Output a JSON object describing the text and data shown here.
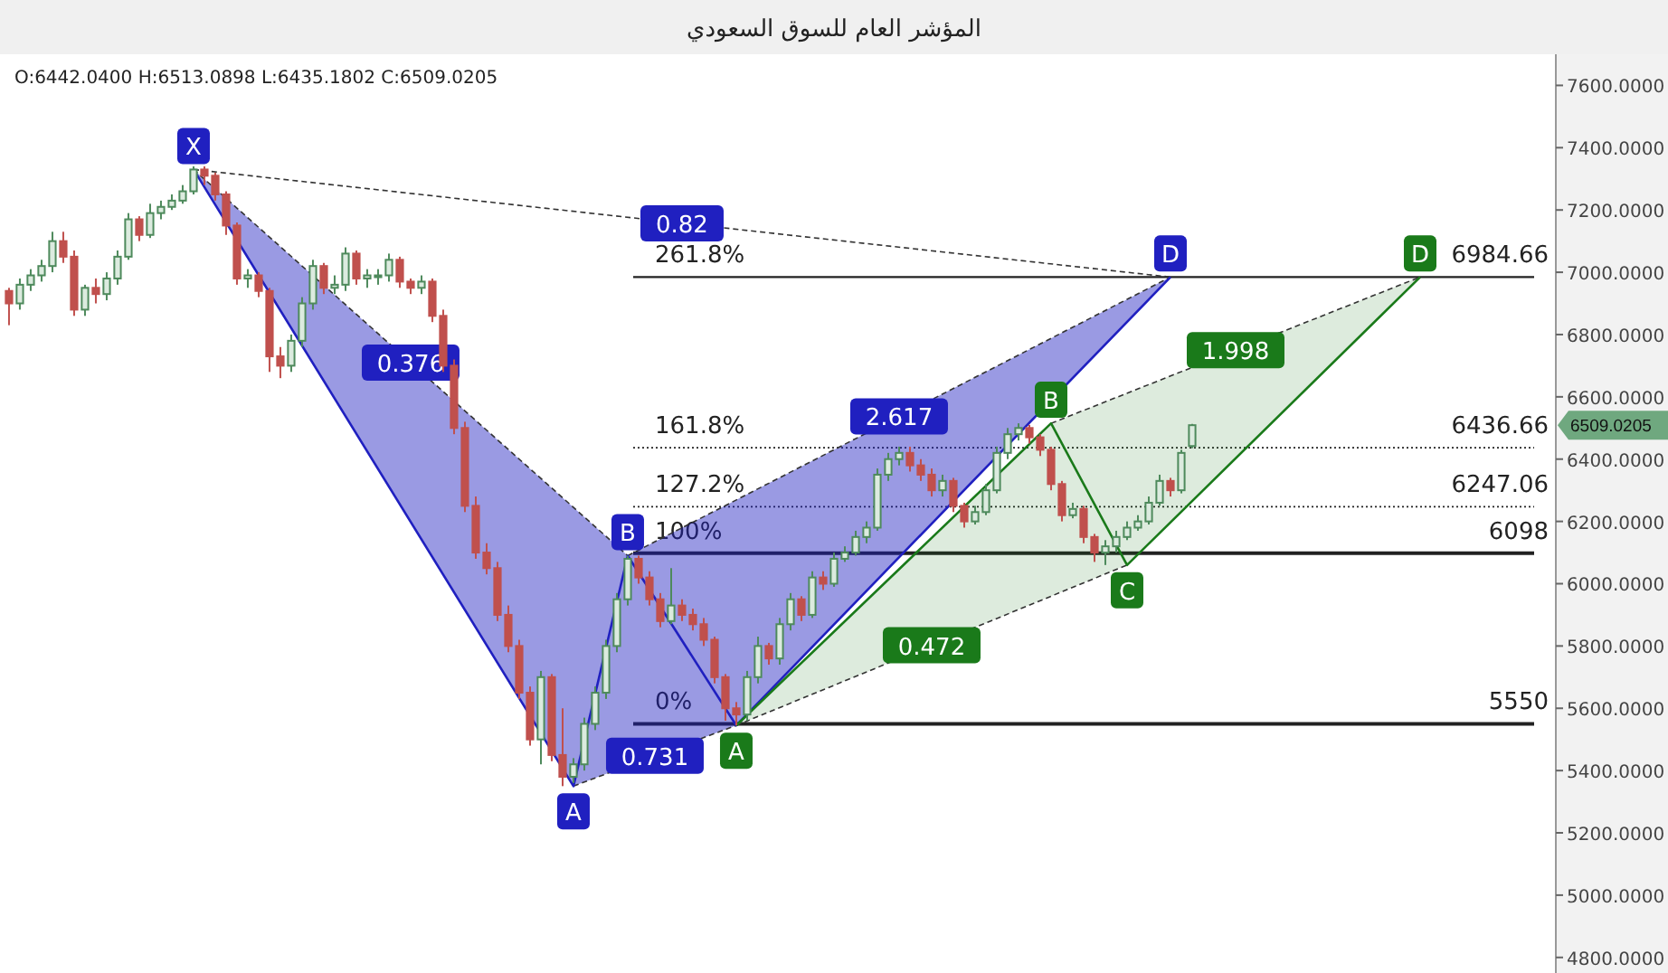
{
  "chart_data": {
    "type": "candlestick",
    "title": "المؤشر العام للسوق السعودي",
    "categories": [
      null,
      null,
      null,
      null,
      null,
      null,
      null,
      null,
      null,
      null,
      null,
      null,
      null,
      null,
      null,
      null,
      null,
      null,
      null,
      null,
      null,
      null,
      null,
      null,
      null,
      null,
      null,
      null,
      null,
      null,
      null,
      null,
      null,
      null,
      null,
      null,
      null,
      null,
      null,
      null,
      null,
      null,
      null,
      null,
      null,
      null,
      null,
      null,
      null,
      null,
      null,
      null,
      null,
      null,
      null,
      null,
      null,
      null,
      null,
      null,
      null,
      null,
      null,
      null,
      null,
      null,
      null,
      null,
      null,
      null,
      null,
      null,
      null,
      null,
      null,
      null,
      null,
      null,
      null,
      null,
      null,
      null,
      null,
      null,
      null,
      null,
      null,
      null,
      null,
      null,
      null,
      null,
      null,
      null,
      null,
      null,
      null,
      null,
      null,
      null,
      null,
      null,
      null,
      null,
      null,
      null,
      null,
      null,
      null,
      null,
      null,
      null,
      null,
      null,
      null,
      null,
      null,
      null,
      null,
      null,
      null,
      null,
      null,
      null,
      null,
      null,
      null,
      null,
      null,
      null,
      null,
      null,
      null,
      null,
      null,
      null,
      null,
      null,
      null,
      null,
      null,
      null,
      null
    ],
    "ohlc": [
      [
        6940,
        6950,
        6830,
        6900
      ],
      [
        6900,
        6980,
        6880,
        6960
      ],
      [
        6960,
        7010,
        6940,
        6990
      ],
      [
        6990,
        7040,
        6970,
        7020
      ],
      [
        7020,
        7130,
        7000,
        7100
      ],
      [
        7100,
        7130,
        7030,
        7050
      ],
      [
        7050,
        7070,
        6860,
        6880
      ],
      [
        6880,
        6960,
        6860,
        6950
      ],
      [
        6950,
        6980,
        6900,
        6930
      ],
      [
        6930,
        7000,
        6910,
        6980
      ],
      [
        6980,
        7070,
        6960,
        7050
      ],
      [
        7050,
        7190,
        7040,
        7170
      ],
      [
        7170,
        7180,
        7100,
        7120
      ],
      [
        7120,
        7220,
        7110,
        7190
      ],
      [
        7190,
        7230,
        7170,
        7210
      ],
      [
        7210,
        7250,
        7200,
        7230
      ],
      [
        7230,
        7280,
        7220,
        7260
      ],
      [
        7260,
        7340,
        7250,
        7330
      ],
      [
        7330,
        7340,
        7280,
        7310
      ],
      [
        7310,
        7320,
        7230,
        7250
      ],
      [
        7250,
        7260,
        7120,
        7150
      ],
      [
        7150,
        7160,
        6960,
        6980
      ],
      [
        6980,
        7010,
        6950,
        6990
      ],
      [
        6990,
        7000,
        6920,
        6940
      ],
      [
        6940,
        6950,
        6680,
        6730
      ],
      [
        6730,
        6760,
        6660,
        6700
      ],
      [
        6700,
        6800,
        6680,
        6780
      ],
      [
        6780,
        6920,
        6760,
        6900
      ],
      [
        6900,
        7040,
        6880,
        7020
      ],
      [
        7020,
        7030,
        6930,
        6950
      ],
      [
        6950,
        6990,
        6930,
        6960
      ],
      [
        6960,
        7080,
        6940,
        7060
      ],
      [
        7060,
        7070,
        6960,
        6980
      ],
      [
        6980,
        7010,
        6950,
        6990
      ],
      [
        6990,
        7010,
        6960,
        6990
      ],
      [
        6990,
        7060,
        6970,
        7040
      ],
      [
        7040,
        7050,
        6950,
        6970
      ],
      [
        6970,
        6980,
        6930,
        6950
      ],
      [
        6950,
        6990,
        6930,
        6970
      ],
      [
        6970,
        6980,
        6840,
        6860
      ],
      [
        6860,
        6880,
        6680,
        6700
      ],
      [
        6700,
        6720,
        6480,
        6500
      ],
      [
        6500,
        6520,
        6230,
        6250
      ],
      [
        6250,
        6280,
        6080,
        6100
      ],
      [
        6100,
        6130,
        6030,
        6050
      ],
      [
        6050,
        6070,
        5880,
        5900
      ],
      [
        5900,
        5930,
        5780,
        5800
      ],
      [
        5800,
        5820,
        5630,
        5650
      ],
      [
        5650,
        5670,
        5480,
        5500
      ],
      [
        5500,
        5720,
        5420,
        5700
      ],
      [
        5700,
        5710,
        5430,
        5450
      ],
      [
        5450,
        5600,
        5350,
        5380
      ],
      [
        5380,
        5440,
        5360,
        5420
      ],
      [
        5420,
        5570,
        5400,
        5550
      ],
      [
        5550,
        5670,
        5530,
        5650
      ],
      [
        5650,
        5820,
        5630,
        5800
      ],
      [
        5800,
        5970,
        5780,
        5950
      ],
      [
        5950,
        6090,
        5930,
        6080
      ],
      [
        6080,
        6090,
        6000,
        6020
      ],
      [
        6020,
        6040,
        5930,
        5950
      ],
      [
        5950,
        5970,
        5860,
        5880
      ],
      [
        5880,
        6050,
        5870,
        5930
      ],
      [
        5930,
        5950,
        5880,
        5900
      ],
      [
        5900,
        5920,
        5850,
        5870
      ],
      [
        5870,
        5890,
        5800,
        5820
      ],
      [
        5820,
        5830,
        5680,
        5700
      ],
      [
        5700,
        5710,
        5560,
        5600
      ],
      [
        5600,
        5620,
        5545,
        5580
      ],
      [
        5580,
        5720,
        5560,
        5700
      ],
      [
        5700,
        5830,
        5680,
        5800
      ],
      [
        5800,
        5810,
        5740,
        5760
      ],
      [
        5760,
        5890,
        5740,
        5870
      ],
      [
        5870,
        5970,
        5850,
        5950
      ],
      [
        5950,
        5960,
        5880,
        5900
      ],
      [
        5900,
        6040,
        5890,
        6020
      ],
      [
        6020,
        6040,
        5980,
        6000
      ],
      [
        6000,
        6100,
        5990,
        6080
      ],
      [
        6080,
        6120,
        6070,
        6100
      ],
      [
        6100,
        6170,
        6090,
        6150
      ],
      [
        6150,
        6200,
        6130,
        6180
      ],
      [
        6180,
        6370,
        6170,
        6350
      ],
      [
        6350,
        6420,
        6330,
        6400
      ],
      [
        6400,
        6440,
        6380,
        6420
      ],
      [
        6420,
        6440,
        6360,
        6380
      ],
      [
        6380,
        6400,
        6330,
        6350
      ],
      [
        6350,
        6370,
        6280,
        6300
      ],
      [
        6300,
        6350,
        6280,
        6330
      ],
      [
        6330,
        6340,
        6230,
        6250
      ],
      [
        6250,
        6260,
        6180,
        6200
      ],
      [
        6200,
        6250,
        6190,
        6230
      ],
      [
        6230,
        6320,
        6220,
        6300
      ],
      [
        6300,
        6440,
        6290,
        6420
      ],
      [
        6420,
        6500,
        6400,
        6480
      ],
      [
        6480,
        6515,
        6460,
        6500
      ],
      [
        6500,
        6510,
        6450,
        6470
      ],
      [
        6470,
        6480,
        6410,
        6430
      ],
      [
        6430,
        6440,
        6300,
        6320
      ],
      [
        6320,
        6330,
        6200,
        6220
      ],
      [
        6220,
        6260,
        6210,
        6240
      ],
      [
        6240,
        6250,
        6130,
        6150
      ],
      [
        6150,
        6160,
        6070,
        6100
      ],
      [
        6100,
        6140,
        6060,
        6120
      ],
      [
        6120,
        6170,
        6100,
        6150
      ],
      [
        6150,
        6200,
        6140,
        6180
      ],
      [
        6180,
        6220,
        6170,
        6200
      ],
      [
        6200,
        6280,
        6190,
        6260
      ],
      [
        6260,
        6350,
        6250,
        6330
      ],
      [
        6330,
        6340,
        6280,
        6300
      ],
      [
        6300,
        6430,
        6290,
        6420
      ],
      [
        6442.04,
        6513.0898,
        6435.1802,
        6509.0205
      ],
      null,
      null,
      null,
      null,
      null,
      null,
      null,
      null,
      null,
      null,
      null,
      null,
      null,
      null,
      null,
      null,
      null,
      null,
      null,
      null,
      null,
      null,
      null,
      null,
      null,
      null,
      null,
      null,
      null,
      null,
      null,
      null,
      null
    ],
    "series": [
      {
        "type": "line",
        "color": "#2020c0",
        "values": [
          null,
          null,
          null,
          null,
          null,
          null,
          null,
          null,
          null,
          null,
          null,
          null,
          null,
          null,
          null,
          null,
          null,
          7330,
          null,
          null,
          null,
          null,
          null,
          null,
          null,
          null,
          null,
          null,
          null,
          null,
          null,
          null,
          null,
          null,
          null,
          null,
          null,
          null,
          null,
          null,
          null,
          null,
          null,
          null,
          null,
          null,
          null,
          null,
          null,
          null,
          null,
          null,
          5350,
          null,
          null,
          null,
          null,
          6090,
          null,
          null,
          null,
          null,
          null,
          null,
          null,
          null,
          null,
          5545,
          null,
          null,
          null,
          null,
          null,
          null,
          null,
          null,
          null,
          null,
          null,
          null,
          null,
          null,
          null,
          null,
          null,
          null,
          null,
          null,
          null,
          null,
          null,
          null,
          null,
          null,
          null,
          null,
          null,
          null,
          null,
          null,
          null,
          null,
          null,
          null,
          null,
          null,
          null,
          6984.66,
          null,
          null,
          null,
          null,
          null,
          null,
          null,
          null,
          null,
          null,
          null,
          null,
          null,
          null,
          null,
          null,
          null,
          null,
          null,
          null,
          null,
          null,
          null,
          null,
          null,
          null,
          null,
          null,
          null,
          null,
          null,
          null,
          null,
          null,
          null
        ],
        "value_labels": [
          null,
          null,
          null,
          null,
          null,
          null,
          null,
          null,
          null,
          null,
          null,
          null,
          null,
          null,
          null,
          null,
          null,
          "X",
          null,
          null,
          null,
          null,
          null,
          null,
          null,
          null,
          null,
          null,
          null,
          null,
          null,
          null,
          null,
          null,
          null,
          null,
          null,
          null,
          null,
          null,
          null,
          null,
          null,
          null,
          null,
          null,
          null,
          null,
          null,
          null,
          null,
          null,
          "A",
          null,
          null,
          null,
          null,
          "B",
          null,
          null,
          null,
          null,
          null,
          null,
          null,
          null,
          null,
          null,
          null,
          null,
          null,
          null,
          null,
          null,
          null,
          null,
          null,
          null,
          null,
          null,
          null,
          null,
          null,
          null,
          null,
          null,
          null,
          null,
          null,
          null,
          null,
          null,
          null,
          null,
          null,
          null,
          null,
          null,
          null,
          null,
          null,
          null,
          null,
          null,
          null,
          null,
          null,
          "D",
          null,
          null,
          null,
          null,
          null,
          null,
          null,
          null,
          null,
          null,
          null,
          null,
          null,
          null,
          null,
          null,
          null,
          null,
          null,
          null,
          null,
          null,
          null,
          null,
          null,
          null,
          null,
          null,
          null,
          null,
          null,
          null,
          null,
          null,
          null
        ]
      },
      {
        "type": "line",
        "color": "#1a7a1a",
        "values": [
          null,
          null,
          null,
          null,
          null,
          null,
          null,
          null,
          null,
          null,
          null,
          null,
          null,
          null,
          null,
          null,
          null,
          null,
          null,
          null,
          null,
          null,
          null,
          null,
          null,
          null,
          null,
          null,
          null,
          null,
          null,
          null,
          null,
          null,
          null,
          null,
          null,
          null,
          null,
          null,
          null,
          null,
          null,
          null,
          null,
          null,
          null,
          null,
          null,
          null,
          null,
          null,
          null,
          null,
          null,
          null,
          null,
          null,
          null,
          null,
          null,
          null,
          null,
          null,
          null,
          null,
          null,
          5545,
          null,
          null,
          null,
          null,
          null,
          null,
          null,
          null,
          null,
          null,
          null,
          null,
          null,
          null,
          null,
          null,
          null,
          null,
          null,
          null,
          null,
          null,
          null,
          null,
          null,
          null,
          null,
          null,
          6515,
          null,
          null,
          null,
          null,
          null,
          null,
          6060,
          null,
          null,
          null,
          null,
          null,
          null,
          null,
          null,
          null,
          null,
          null,
          null,
          null,
          null,
          null,
          null,
          null,
          null,
          null,
          null,
          null,
          null,
          null,
          null,
          null,
          null,
          6984.66,
          null,
          null,
          null,
          null,
          null,
          null,
          null,
          null,
          null,
          null,
          null,
          null
        ],
        "value_labels": [
          null,
          null,
          null,
          null,
          null,
          null,
          null,
          null,
          null,
          null,
          null,
          null,
          null,
          null,
          null,
          null,
          null,
          null,
          null,
          null,
          null,
          null,
          null,
          null,
          null,
          null,
          null,
          null,
          null,
          null,
          null,
          null,
          null,
          null,
          null,
          null,
          null,
          null,
          null,
          null,
          null,
          null,
          null,
          null,
          null,
          null,
          null,
          null,
          null,
          null,
          null,
          null,
          null,
          null,
          null,
          null,
          null,
          null,
          null,
          null,
          null,
          null,
          null,
          null,
          null,
          null,
          null,
          "A",
          null,
          null,
          null,
          null,
          null,
          null,
          null,
          null,
          null,
          null,
          null,
          null,
          null,
          null,
          null,
          null,
          null,
          null,
          null,
          null,
          null,
          null,
          null,
          null,
          null,
          null,
          null,
          null,
          "B",
          null,
          null,
          null,
          null,
          null,
          null,
          "C",
          null,
          null,
          null,
          null,
          null,
          null,
          null,
          null,
          null,
          null,
          null,
          null,
          null,
          null,
          null,
          null,
          null,
          null,
          null,
          null,
          null,
          null,
          null,
          null,
          null,
          null,
          "D",
          null,
          null,
          null,
          null,
          null,
          null,
          null,
          null,
          null,
          null,
          null,
          null
        ]
      }
    ],
    "ylim": [
      4750,
      7700
    ],
    "yticks": [
      {
        "value": 4800,
        "label": "4800.0000"
      },
      {
        "value": 5000,
        "label": "5000.0000"
      },
      {
        "value": 5200,
        "label": "5200.0000"
      },
      {
        "value": 5400,
        "label": "5400.0000"
      },
      {
        "value": 5600,
        "label": "5600.0000"
      },
      {
        "value": 5800,
        "label": "5800.0000"
      },
      {
        "value": 6000,
        "label": "6000.0000"
      },
      {
        "value": 6200,
        "label": "6200.0000"
      },
      {
        "value": 6400,
        "label": "6400.0000"
      },
      {
        "value": 6600,
        "label": "6600.0000"
      },
      {
        "value": 6800,
        "label": "6800.0000"
      },
      {
        "value": 7000,
        "label": "7000.0000"
      },
      {
        "value": 7200,
        "label": "7200.0000"
      },
      {
        "value": 7400,
        "label": "7400.0000"
      },
      {
        "value": 7600,
        "label": "7600.0000"
      }
    ],
    "tick_labels": "y",
    "ref_lines": [
      {
        "axis": "y",
        "value": 6984.66,
        "label": "6984.66",
        "line_style": "solid"
      },
      {
        "axis": "y",
        "value": 6436.66,
        "label": "6436.66",
        "line_style": "dotted"
      },
      {
        "axis": "y",
        "value": 6247.06,
        "label": "6247.06",
        "line_style": "dotted"
      },
      {
        "axis": "y",
        "value": 6098,
        "label": "6098",
        "line_style": "solid"
      },
      {
        "axis": "y",
        "value": 5550,
        "label": "5550",
        "line_style": "solid"
      }
    ],
    "annotations": [
      "O:6442.0400  H:6513.0898  L:6435.1802  C:6509.0205",
      "261.8%",
      "161.8%",
      "127.2%",
      "100%",
      "0%",
      "0.376",
      "0.731",
      "2.617",
      "0.82",
      "0.472",
      "1.998",
      "6509.0205"
    ]
  }
}
